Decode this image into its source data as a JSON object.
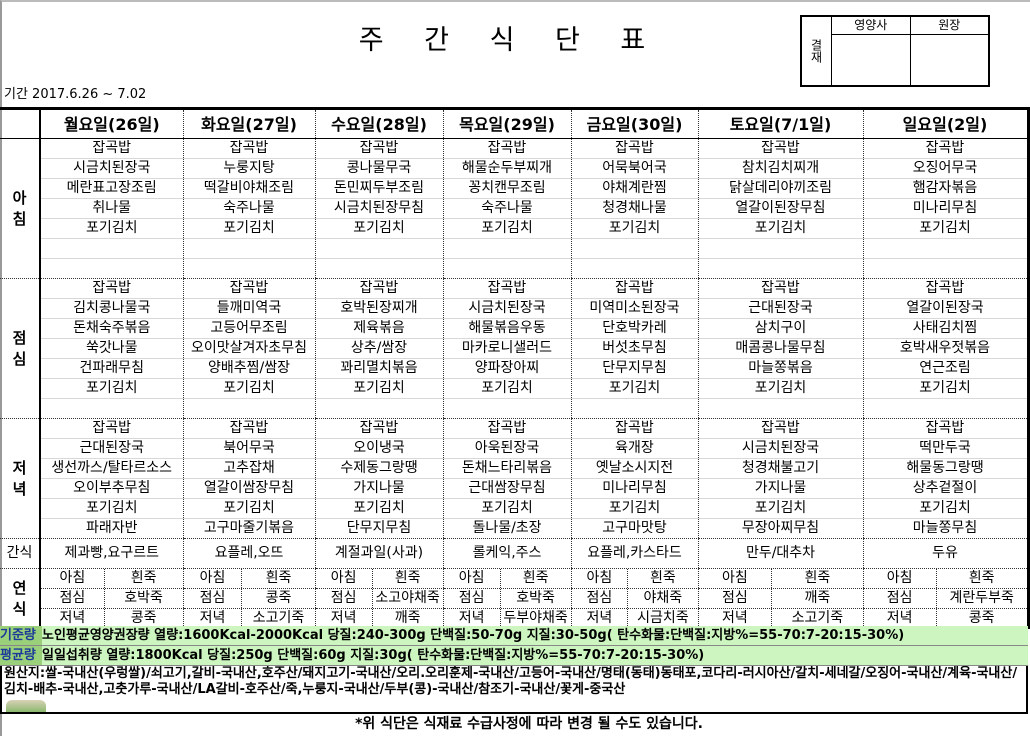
{
  "title": "주 간 식 단 표",
  "period": "기간  2017.6.26 ~ 7.02",
  "approval": {
    "label": "결재",
    "cols": [
      "영양사",
      "원장"
    ]
  },
  "meal_labels": {
    "breakfast": "아침",
    "lunch": "점심",
    "dinner": "저녁",
    "snack": "간식",
    "porridge": "연식"
  },
  "days": [
    {
      "label": "월요일(26일)",
      "breakfast": [
        "잡곡밥",
        "시금치된장국",
        "메란표고장조림",
        "취나물",
        "포기김치"
      ],
      "lunch": [
        "잡곡밥",
        "김치콩나물국",
        "돈채숙주볶음",
        "쑥갓나물",
        "건파래무침",
        "포기김치"
      ],
      "dinner": [
        "잡곡밥",
        "근대된장국",
        "생선까스/탈타르소스",
        "오이부추무침",
        "포기김치",
        "파래자반"
      ],
      "snack": "제과빵,요구르트",
      "porridge": {
        "breakfast": "흰죽",
        "lunch": "호박죽",
        "dinner": "콩죽"
      }
    },
    {
      "label": "화요일(27일)",
      "breakfast": [
        "잡곡밥",
        "누룽지탕",
        "떡갈비야채조림",
        "숙주나물",
        "포기김치"
      ],
      "lunch": [
        "잡곡밥",
        "들깨미역국",
        "고등어무조림",
        "오이맛살겨자초무침",
        "양배추찜/쌈장",
        "포기김치"
      ],
      "dinner": [
        "잡곡밥",
        "북어무국",
        "고추잡채",
        "열갈이쌈장무침",
        "포기김치",
        "고구마줄기볶음"
      ],
      "snack": "요플레,오뜨",
      "porridge": {
        "breakfast": "흰죽",
        "lunch": "콩죽",
        "dinner": "소고기죽"
      }
    },
    {
      "label": "수요일(28일)",
      "breakfast": [
        "잡곡밥",
        "콩나물무국",
        "돈민찌두부조림",
        "시금치된장무침",
        "포기김치"
      ],
      "lunch": [
        "잡곡밥",
        "호박된장찌개",
        "제육볶음",
        "상추/쌈장",
        "꽈리멸치볶음",
        "포기김치"
      ],
      "dinner": [
        "잡곡밥",
        "오이냉국",
        "수제동그랑땡",
        "가지나물",
        "포기김치",
        "단무지무침"
      ],
      "snack": "계절과일(사과)",
      "porridge": {
        "breakfast": "흰죽",
        "lunch": "소고야채죽",
        "dinner": "깨죽"
      }
    },
    {
      "label": "목요일(29일)",
      "breakfast": [
        "잡곡밥",
        "해물순두부찌개",
        "꽁치캔무조림",
        "숙주나물",
        "포기김치"
      ],
      "lunch": [
        "잡곡밥",
        "시금치된장국",
        "해물볶음우동",
        "마카로니샐러드",
        "양파장아찌",
        "포기김치"
      ],
      "dinner": [
        "잡곡밥",
        "아욱된장국",
        "돈채느타리볶음",
        "근대쌈장무침",
        "포기김치",
        "돌나물/초장"
      ],
      "snack": "롤케익,주스",
      "porridge": {
        "breakfast": "흰죽",
        "lunch": "호박죽",
        "dinner": "두부야채죽"
      }
    },
    {
      "label": "금요일(30일)",
      "breakfast": [
        "잡곡밥",
        "어묵북어국",
        "야채계란찜",
        "청경채나물",
        "포기김치"
      ],
      "lunch": [
        "잡곡밥",
        "미역미소된장국",
        "단호박카레",
        "버섯초무침",
        "단무지무침",
        "포기김치"
      ],
      "dinner": [
        "잡곡밥",
        "육개장",
        "옛날소시지전",
        "미나리무침",
        "포기김치",
        "고구마맛탕"
      ],
      "snack": "요플레,카스타드",
      "porridge": {
        "breakfast": "흰죽",
        "lunch": "야채죽",
        "dinner": "시금치죽"
      }
    },
    {
      "label": "토요일(7/1일)",
      "breakfast": [
        "잡곡밥",
        "참치김치찌개",
        "닭살데리야끼조림",
        "열갈이된장무침",
        "포기김치"
      ],
      "lunch": [
        "잡곡밥",
        "근대된장국",
        "삼치구이",
        "매콤콩나물무침",
        "마늘쫑볶음",
        "포기김치"
      ],
      "dinner": [
        "잡곡밥",
        "시금치된장국",
        "청경채불고기",
        "가지나물",
        "포기김치",
        "무장아찌무침"
      ],
      "snack": "만두/대추차",
      "porridge": {
        "breakfast": "흰죽",
        "lunch": "깨죽",
        "dinner": "소고기죽"
      }
    },
    {
      "label": "일요일(2일)",
      "breakfast": [
        "잡곡밥",
        "오징어무국",
        "햄감자볶음",
        "미나리무침",
        "포기김치"
      ],
      "lunch": [
        "잡곡밥",
        "열갈이된장국",
        "사태김치찜",
        "호박새우젓볶음",
        "연근조림",
        "포기김치"
      ],
      "dinner": [
        "잡곡밥",
        "떡만두국",
        "해물동그랑땡",
        "상추겉절이",
        "포기김치",
        "마늘쫑무침"
      ],
      "snack": "두유",
      "porridge": {
        "breakfast": "흰죽",
        "lunch": "계란두부죽",
        "dinner": "콩죽"
      }
    }
  ],
  "standards": [
    {
      "label": "기준량",
      "text": "노인평균영양권장량 열량:1600Kcal-2000Kcal 당질:240-300g 단백질:50-70g 지질:30-50g( 탄수화물:단백질:지방%=55-70:7-20:15-30%)"
    },
    {
      "label": "평균량",
      "text": "일일섭취량 열량:1800Kcal 당질:250g 단백질:60g 지질:30g( 탄수화물:단백질:지방%=55-70:7-20:15-30%)"
    }
  ],
  "origin": "원산지:쌀-국내산(우렁쌀)/쇠고기,갈비-국내산,호주산/돼지고기-국내산/오리.오리훈제-국내산/고등어-국내산/명태(동태)동태포,코다리-러시아산/갈치-세네갈/오징어-국내산/계육-국내산/김치-배추-국내산,고춧가루-국내산/LA갈비-호주산/죽,누룽지-국내산/두부(콩)-국내산/참조기-국내산/꽃게-중국산",
  "note": "*위 식단은 식재료 수급사정에 따라 변경 될 수도 있습니다."
}
